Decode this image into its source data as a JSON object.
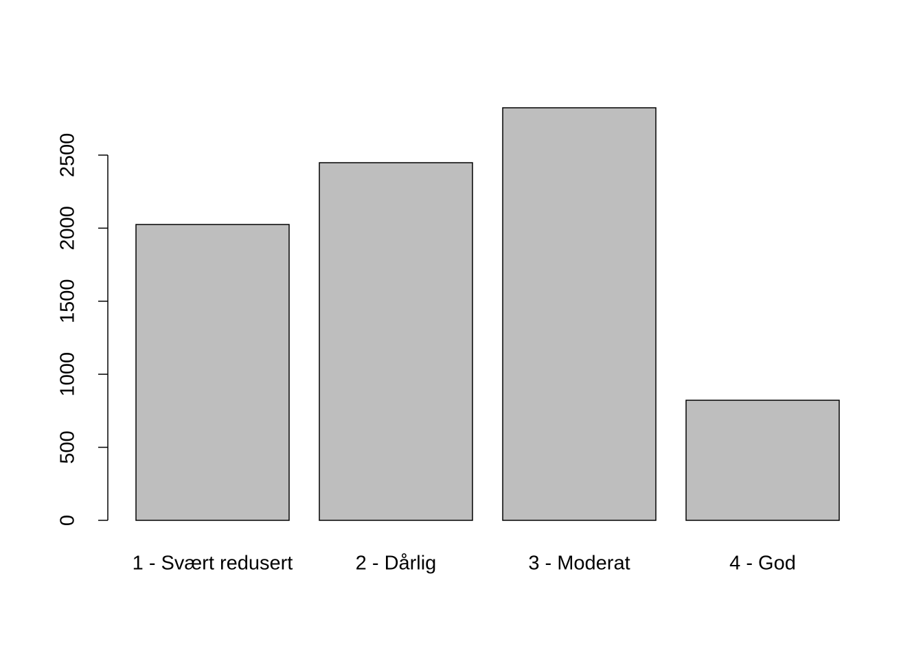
{
  "chart_data": {
    "type": "bar",
    "categories": [
      "1 - Svært redusert",
      "2 - Dårlig",
      "3 - Moderat",
      "4 - God"
    ],
    "values": [
      2025,
      2448,
      2824,
      822
    ],
    "color": "#bebebe",
    "ylim": [
      0,
      2824
    ],
    "yticks": [
      0,
      500,
      1000,
      1500,
      2000,
      2500
    ]
  }
}
